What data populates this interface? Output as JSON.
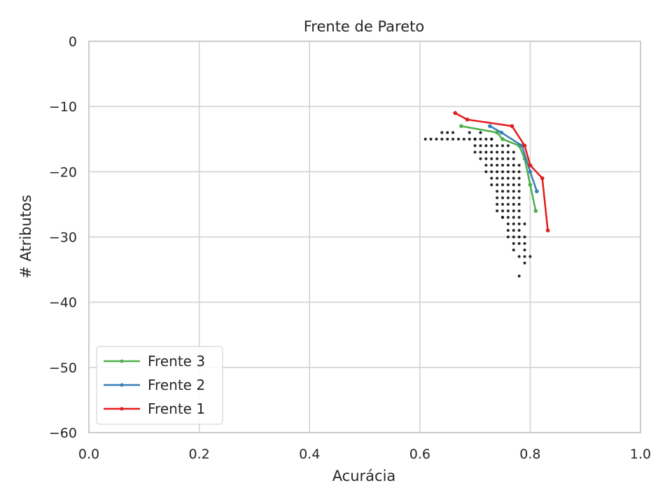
{
  "chart_data": {
    "type": "scatter",
    "title": "Frente de Pareto",
    "xlabel": "Acurácia",
    "ylabel": "# Atributos",
    "xlim": [
      0.0,
      1.0
    ],
    "ylim": [
      -60,
      0
    ],
    "xticks": [
      0.0,
      0.2,
      0.4,
      0.6,
      0.8,
      1.0
    ],
    "xtick_labels": [
      "0.0",
      "0.2",
      "0.4",
      "0.6",
      "0.8",
      "1.0"
    ],
    "yticks": [
      0,
      -10,
      -20,
      -30,
      -40,
      -50,
      -60
    ],
    "ytick_labels": [
      "0",
      "−10",
      "−20",
      "−30",
      "−40",
      "−50",
      "−60"
    ],
    "grid": true,
    "legend_position": "lower-left",
    "colors": {
      "frente_3": "#4daf4a",
      "frente_2": "#377eb8",
      "frente_1": "#e41a1c",
      "points": "#000000",
      "grid": "#d0d0d0",
      "frame": "#cccccc"
    },
    "series": [
      {
        "name": "Frente 3",
        "color": "#4daf4a",
        "x": [
          0.675,
          0.74,
          0.75,
          0.78,
          0.79,
          0.8,
          0.81
        ],
        "y": [
          -13,
          -14,
          -15,
          -16,
          -18,
          -22,
          -26
        ]
      },
      {
        "name": "Frente 2",
        "color": "#377eb8",
        "x": [
          0.727,
          0.748,
          0.785,
          0.8,
          0.812
        ],
        "y": [
          -13,
          -14,
          -16,
          -20,
          -23
        ]
      },
      {
        "name": "Frente 1",
        "color": "#e41a1c",
        "x": [
          0.664,
          0.686,
          0.767,
          0.79,
          0.8,
          0.822,
          0.832
        ],
        "y": [
          -11,
          -12,
          -13,
          -16,
          -19,
          -21,
          -29
        ]
      }
    ],
    "points": {
      "x": [
        0.61,
        0.62,
        0.64,
        0.65,
        0.65,
        0.64,
        0.63,
        0.66,
        0.66,
        0.67,
        0.68,
        0.69,
        0.7,
        0.71,
        0.72,
        0.73,
        0.69,
        0.71,
        0.7,
        0.73,
        0.7,
        0.71,
        0.72,
        0.73,
        0.74,
        0.75,
        0.76,
        0.7,
        0.71,
        0.72,
        0.73,
        0.74,
        0.75,
        0.76,
        0.77,
        0.71,
        0.72,
        0.73,
        0.74,
        0.75,
        0.76,
        0.77,
        0.72,
        0.73,
        0.74,
        0.75,
        0.76,
        0.77,
        0.78,
        0.72,
        0.73,
        0.74,
        0.75,
        0.76,
        0.77,
        0.78,
        0.73,
        0.74,
        0.75,
        0.76,
        0.77,
        0.78,
        0.73,
        0.74,
        0.75,
        0.76,
        0.77,
        0.78,
        0.74,
        0.75,
        0.76,
        0.77,
        0.78,
        0.74,
        0.75,
        0.76,
        0.77,
        0.78,
        0.74,
        0.75,
        0.76,
        0.77,
        0.78,
        0.74,
        0.75,
        0.76,
        0.77,
        0.78,
        0.75,
        0.76,
        0.77,
        0.78,
        0.75,
        0.76,
        0.77,
        0.78,
        0.79,
        0.76,
        0.77,
        0.78,
        0.76,
        0.77,
        0.78,
        0.79,
        0.77,
        0.78,
        0.79,
        0.77,
        0.79,
        0.78,
        0.79,
        0.8,
        0.79,
        0.78
      ],
      "y": [
        -15,
        -15,
        -14,
        -14,
        -15,
        -15,
        -15,
        -15,
        -14,
        -15,
        -15,
        -15,
        -15,
        -15,
        -15,
        -15,
        -14,
        -14,
        -15,
        -15,
        -16,
        -16,
        -16,
        -16,
        -16,
        -16,
        -16,
        -17,
        -17,
        -17,
        -17,
        -17,
        -17,
        -17,
        -17,
        -18,
        -18,
        -18,
        -18,
        -18,
        -18,
        -18,
        -19,
        -19,
        -19,
        -19,
        -19,
        -19,
        -19,
        -20,
        -20,
        -20,
        -20,
        -20,
        -20,
        -20,
        -21,
        -21,
        -21,
        -21,
        -21,
        -21,
        -22,
        -22,
        -22,
        -22,
        -22,
        -22,
        -23,
        -23,
        -23,
        -23,
        -23,
        -24,
        -24,
        -24,
        -24,
        -24,
        -25,
        -25,
        -25,
        -25,
        -25,
        -26,
        -26,
        -26,
        -26,
        -26,
        -27,
        -27,
        -27,
        -27,
        -27,
        -28,
        -28,
        -28,
        -28,
        -29,
        -29,
        -29,
        -30,
        -30,
        -30,
        -30,
        -31,
        -31,
        -31,
        -32,
        -32,
        -33,
        -33,
        -33,
        -34,
        -36
      ]
    }
  }
}
